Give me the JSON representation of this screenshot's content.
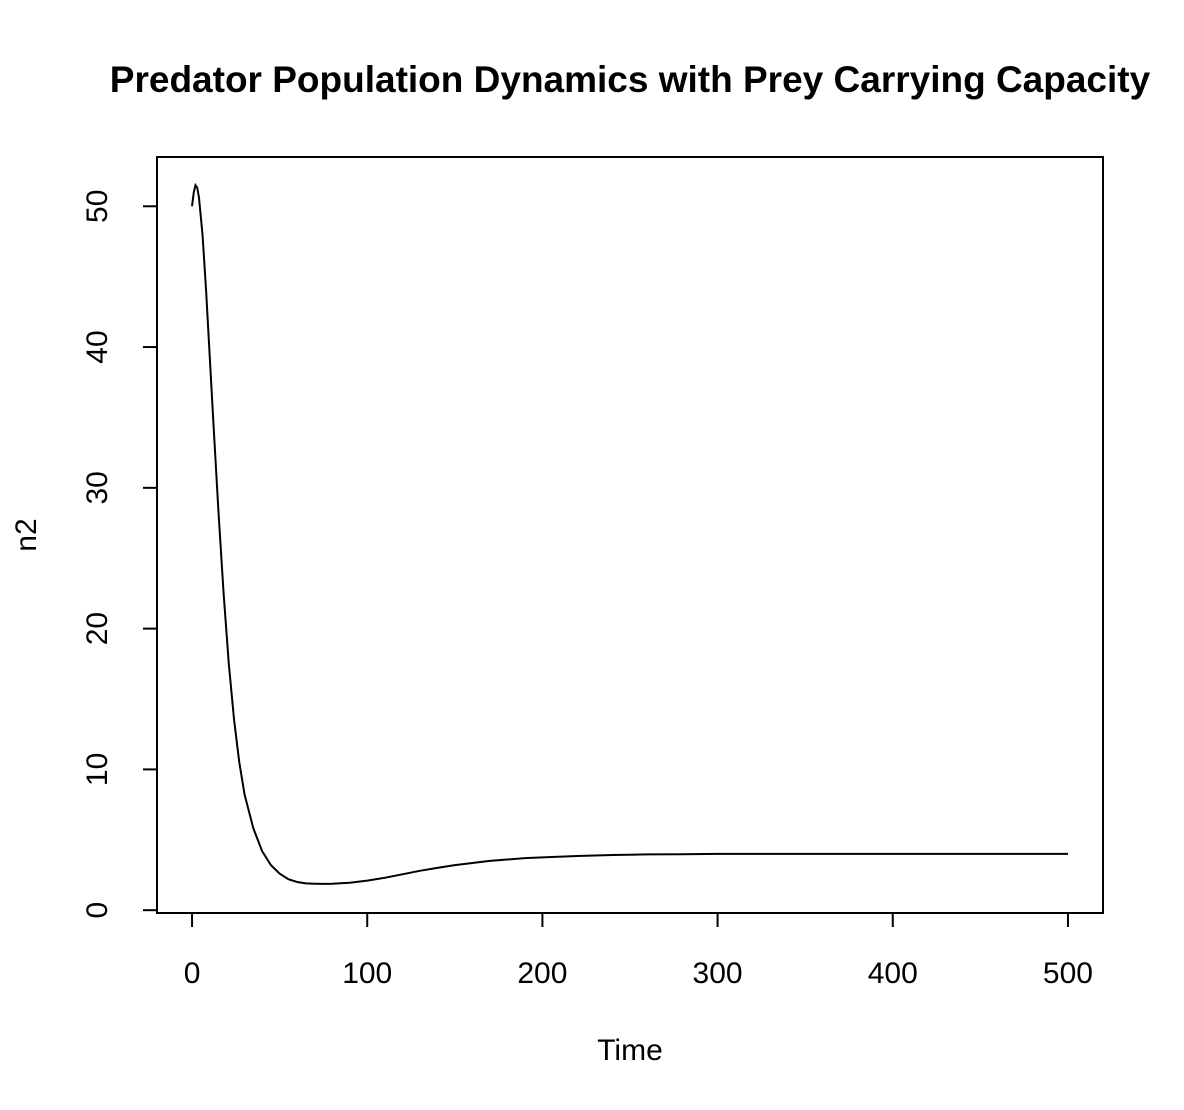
{
  "chart_data": {
    "type": "line",
    "title": "Predator Population Dynamics with Prey Carrying Capacity",
    "xlabel": "Time",
    "ylabel": "n2",
    "xlim": [
      -20,
      520
    ],
    "ylim": [
      -0.2,
      53.5
    ],
    "x_ticks": [
      0,
      100,
      200,
      300,
      400,
      500
    ],
    "x_tick_labels": [
      "0",
      "100",
      "200",
      "300",
      "400",
      "500"
    ],
    "y_ticks": [
      0,
      10,
      20,
      30,
      40,
      50
    ],
    "y_tick_labels": [
      "0",
      "10",
      "20",
      "30",
      "40",
      "50"
    ],
    "grid": false,
    "legend": "none",
    "line_color": "#000000",
    "series": [
      {
        "x": [
          0,
          1,
          2,
          3,
          4,
          6,
          8,
          10,
          12,
          15,
          18,
          21,
          24,
          27,
          30,
          35,
          40,
          45,
          50,
          55,
          60,
          65,
          70,
          75,
          80,
          90,
          100,
          110,
          120,
          130,
          140,
          150,
          160,
          170,
          180,
          190,
          200,
          220,
          240,
          260,
          280,
          300,
          350,
          400,
          450,
          500
        ],
        "y": [
          50.0,
          51.0,
          51.5,
          51.3,
          50.6,
          48.0,
          44.0,
          39.5,
          35.0,
          28.5,
          22.5,
          17.5,
          13.5,
          10.5,
          8.2,
          5.8,
          4.2,
          3.2,
          2.6,
          2.2,
          2.0,
          1.9,
          1.88,
          1.87,
          1.88,
          1.95,
          2.1,
          2.3,
          2.55,
          2.8,
          3.0,
          3.2,
          3.35,
          3.5,
          3.6,
          3.7,
          3.75,
          3.85,
          3.92,
          3.96,
          3.98,
          4.0,
          4.0,
          4.0,
          4.0,
          4.0
        ]
      }
    ]
  }
}
